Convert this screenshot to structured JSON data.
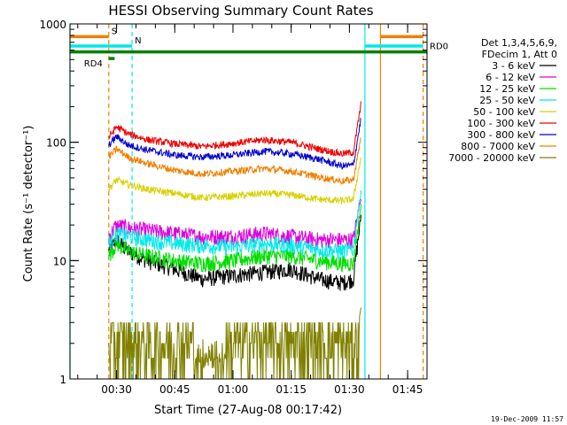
{
  "chart_data": {
    "type": "line",
    "title": "HESSI Observing Summary Count Rates",
    "xlabel": "Start Time (27-Aug-08 00:17:42)",
    "ylabel": "Count Rate (s⁻¹ detector⁻¹)",
    "y_scale": "log",
    "ylim": [
      1,
      1000
    ],
    "xlim_minutes": [
      18,
      110
    ],
    "x_ticks": [
      {
        "min": 30,
        "label": "00:30"
      },
      {
        "min": 45,
        "label": "00:45"
      },
      {
        "min": 60,
        "label": "01:00"
      },
      {
        "min": 75,
        "label": "01:15"
      },
      {
        "min": 90,
        "label": "01:30"
      },
      {
        "min": 105,
        "label": "01:45"
      }
    ],
    "y_ticks": [
      {
        "value": 1,
        "label": "1"
      },
      {
        "value": 10,
        "label": "10"
      },
      {
        "value": 100,
        "label": "100"
      },
      {
        "value": 1000,
        "label": "1000"
      }
    ],
    "legend": {
      "placement": "right",
      "header": [
        "Det 1,3,4,5,6,9,",
        "FDecim 1, Att 0"
      ]
    },
    "series": [
      {
        "name": "3 - 6 keV",
        "color": "#000000",
        "x": [
          28,
          30,
          33,
          38,
          45,
          52,
          60,
          68,
          75,
          82,
          88,
          91,
          93
        ],
        "y": [
          12,
          15,
          12,
          10,
          8.5,
          7,
          7.5,
          8,
          8.5,
          7,
          6.5,
          7,
          24
        ]
      },
      {
        "name": "6 - 12 keV",
        "color": "#dd00dd",
        "x": [
          28,
          30,
          33,
          38,
          45,
          52,
          60,
          68,
          75,
          82,
          88,
          91,
          93
        ],
        "y": [
          16,
          20,
          19,
          18,
          17,
          16,
          16,
          17,
          16,
          15,
          15,
          15,
          35
        ]
      },
      {
        "name": "12 - 25 keV",
        "color": "#00dd00",
        "x": [
          28,
          30,
          33,
          38,
          45,
          52,
          60,
          68,
          75,
          82,
          88,
          91,
          93
        ],
        "y": [
          11,
          14,
          12,
          11,
          10,
          9.5,
          10,
          11,
          11,
          10,
          9.5,
          9.5,
          30
        ]
      },
      {
        "name": "25 - 50 keV",
        "color": "#00e8e8",
        "x": [
          28,
          30,
          33,
          38,
          45,
          52,
          60,
          68,
          75,
          82,
          88,
          91,
          93
        ],
        "y": [
          14,
          17,
          16,
          15,
          14,
          13.5,
          13,
          14,
          13.5,
          12.5,
          12,
          12.5,
          40
        ]
      },
      {
        "name": "50 - 100 keV",
        "color": "#d8d000",
        "x": [
          28,
          30,
          33,
          38,
          45,
          52,
          60,
          68,
          75,
          82,
          88,
          91,
          93
        ],
        "y": [
          40,
          48,
          44,
          40,
          37,
          34,
          35,
          37,
          36,
          33,
          32,
          33,
          75
        ]
      },
      {
        "name": "100 - 300 keV",
        "color": "#ee0000",
        "x": [
          28,
          30,
          33,
          38,
          45,
          52,
          60,
          68,
          75,
          82,
          88,
          91,
          93
        ],
        "y": [
          110,
          135,
          118,
          105,
          97,
          92,
          98,
          105,
          100,
          88,
          80,
          82,
          210
        ]
      },
      {
        "name": "300 - 800 keV",
        "color": "#0000cc",
        "x": [
          28,
          30,
          33,
          38,
          45,
          52,
          60,
          68,
          75,
          82,
          88,
          91,
          93
        ],
        "y": [
          95,
          112,
          95,
          86,
          78,
          75,
          78,
          84,
          80,
          72,
          63,
          64,
          160
        ]
      },
      {
        "name": "800 - 7000 keV",
        "color": "#f08000",
        "x": [
          28,
          30,
          33,
          38,
          45,
          52,
          60,
          68,
          75,
          82,
          88,
          91,
          93
        ],
        "y": [
          75,
          88,
          75,
          66,
          58,
          54,
          57,
          60,
          57,
          51,
          47,
          48,
          110
        ]
      },
      {
        "name": "7000 - 20000 keV",
        "color": "#808000",
        "x": [
          28,
          30,
          33,
          38,
          45,
          52,
          60,
          68,
          75,
          82,
          88,
          91,
          93
        ],
        "y": [
          2.5,
          2,
          1.6,
          1.4,
          1.6,
          1.8,
          1.6,
          2,
          1.8,
          1.6,
          1.6,
          1.7,
          4
        ]
      }
    ],
    "flags": [
      {
        "label": "S",
        "color": "#f08000",
        "x": [
          18,
          28
        ],
        "value": 780
      },
      {
        "label": "N",
        "color": "#00e8e8",
        "x": [
          18,
          34
        ],
        "value": 650
      },
      {
        "label": "RD0",
        "color": "#008000",
        "x": [
          18,
          110
        ],
        "value": 580
      },
      {
        "label": "RD4",
        "color": "#008000",
        "x": [
          28,
          29.5
        ],
        "value": 510
      },
      {
        "label": "",
        "color": "#f08000",
        "x": [
          98,
          109
        ],
        "value": 780
      },
      {
        "label": "",
        "color": "#00e8e8",
        "x": [
          94,
          109
        ],
        "value": 650
      }
    ],
    "vertical_markers": [
      {
        "x": 18,
        "color": "#00e8e8",
        "style": "solid"
      },
      {
        "x": 28,
        "color": "#f08000",
        "style": "dashed"
      },
      {
        "x": 34,
        "color": "#00e8e8",
        "style": "dashed"
      },
      {
        "x": 94,
        "color": "#00e8e8",
        "style": "solid"
      },
      {
        "x": 98,
        "color": "#f08000",
        "style": "solid"
      },
      {
        "x": 109,
        "color": "#f08000",
        "style": "dashed"
      }
    ]
  },
  "timestamp": "19-Dec-2009 11:57"
}
